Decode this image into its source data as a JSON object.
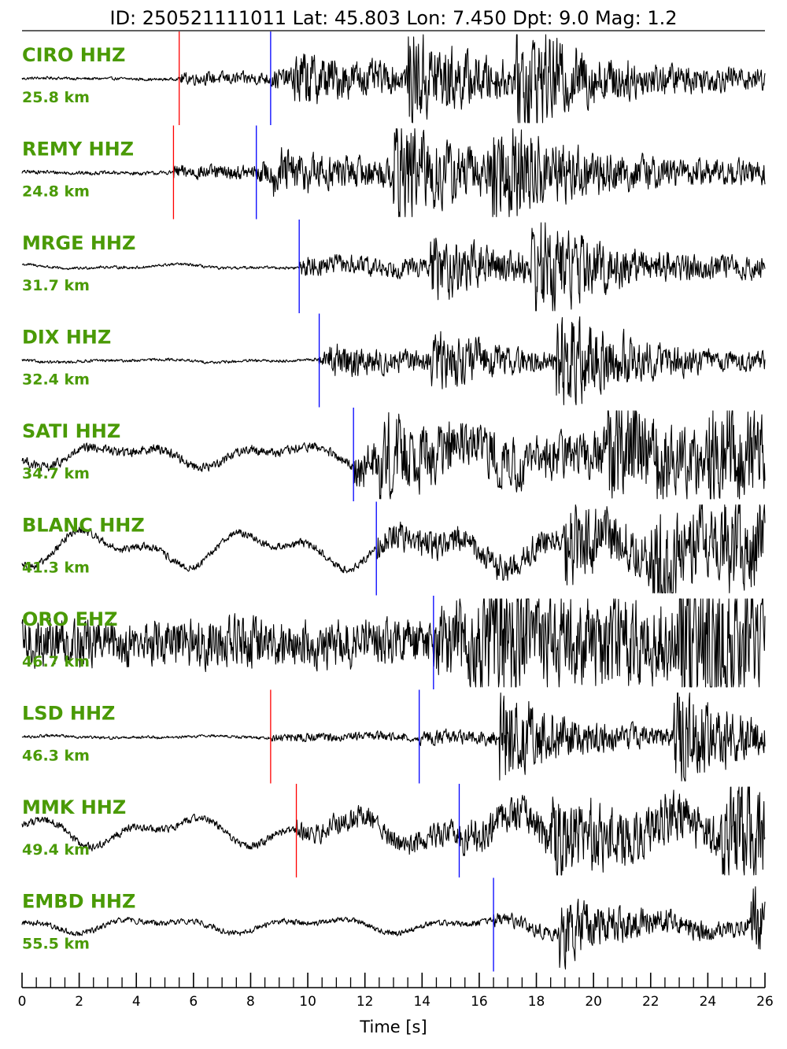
{
  "chart_data": {
    "type": "line",
    "title": "ID: 250521111011 Lat:  45.803 Lon:   7.450 Dpt:     9.0 Mag:   1.2",
    "event": {
      "id": "250521111011",
      "lat": 45.803,
      "lon": 7.45,
      "depth": 9.0,
      "mag": 1.2
    },
    "xlabel": "Time [s]",
    "xlim": [
      0,
      26
    ],
    "x_ticks": [
      0,
      2,
      4,
      6,
      8,
      10,
      12,
      14,
      16,
      18,
      20,
      22,
      24,
      26
    ],
    "minor_tick_step": 0.5,
    "colors": {
      "label": "#4a9a06",
      "trace": "#000000",
      "p_pick": "#0000ff",
      "s_pick": "#ff0000"
    },
    "series": [
      {
        "name": "CIRO HHZ",
        "distance": "25.8 km",
        "s_pick": 5.5,
        "p_pick": 8.7,
        "pre_noise": 0.03,
        "post_noise": 0.22,
        "burst_times": [
          9.5,
          13.5,
          17.3
        ],
        "burst_amps": [
          0.45,
          0.85,
          1.0
        ],
        "lowfreq": 0.02
      },
      {
        "name": "REMY HHZ",
        "distance": "24.8 km",
        "s_pick": 5.3,
        "p_pick": 8.2,
        "pre_noise": 0.04,
        "post_noise": 0.25,
        "burst_times": [
          8.8,
          13.0,
          16.4
        ],
        "burst_amps": [
          0.3,
          1.0,
          0.95
        ],
        "lowfreq": 0.02
      },
      {
        "name": "MRGE HHZ",
        "distance": "31.7 km",
        "s_pick": null,
        "p_pick": 9.7,
        "pre_noise": 0.03,
        "post_noise": 0.2,
        "burst_times": [
          14.3,
          17.8
        ],
        "burst_amps": [
          0.5,
          0.95
        ],
        "lowfreq": 0.06
      },
      {
        "name": "DIX HHZ",
        "distance": "32.4 km",
        "s_pick": null,
        "p_pick": 10.4,
        "pre_noise": 0.03,
        "post_noise": 0.15,
        "burst_times": [
          10.7,
          14.3,
          18.7
        ],
        "burst_amps": [
          0.25,
          0.5,
          1.0
        ],
        "lowfreq": 0.04
      },
      {
        "name": "SATI HHZ",
        "distance": "34.7 km",
        "s_pick": null,
        "p_pick": 11.6,
        "pre_noise": 0.1,
        "post_noise": 0.45,
        "burst_times": [
          12.5,
          20.5,
          24.0
        ],
        "burst_amps": [
          0.5,
          0.95,
          0.8
        ],
        "lowfreq": 0.3
      },
      {
        "name": "BLANC HHZ",
        "distance": "41.3 km",
        "s_pick": null,
        "p_pick": 12.4,
        "pre_noise": 0.08,
        "post_noise": 0.3,
        "burst_times": [
          19.0,
          22.0,
          24.5
        ],
        "burst_amps": [
          0.6,
          1.0,
          0.7
        ],
        "lowfreq": 0.5
      },
      {
        "name": "ORO EHZ",
        "distance": "46.7 km",
        "s_pick": null,
        "p_pick": 14.4,
        "pre_noise": 0.5,
        "post_noise": 0.85,
        "burst_times": [
          16.0,
          23.0
        ],
        "burst_amps": [
          0.8,
          1.0
        ],
        "lowfreq": 0.05
      },
      {
        "name": "LSD HHZ",
        "distance": "46.3 km",
        "s_pick": 8.7,
        "p_pick": 13.9,
        "pre_noise": 0.03,
        "post_noise": 0.15,
        "burst_times": [
          16.7,
          22.8
        ],
        "burst_amps": [
          0.9,
          1.0
        ],
        "lowfreq": 0.03
      },
      {
        "name": "MMK HHZ",
        "distance": "49.4 km",
        "s_pick": 9.6,
        "p_pick": 15.3,
        "pre_noise": 0.08,
        "post_noise": 0.4,
        "burst_times": [
          18.5,
          24.5
        ],
        "burst_amps": [
          0.7,
          1.0
        ],
        "lowfreq": 0.4
      },
      {
        "name": "EMBD HHZ",
        "distance": "55.5 km",
        "s_pick": null,
        "p_pick": 16.5,
        "pre_noise": 0.06,
        "post_noise": 0.15,
        "burst_times": [
          18.8,
          25.5
        ],
        "burst_amps": [
          0.6,
          0.6
        ],
        "lowfreq": 0.2
      }
    ]
  }
}
